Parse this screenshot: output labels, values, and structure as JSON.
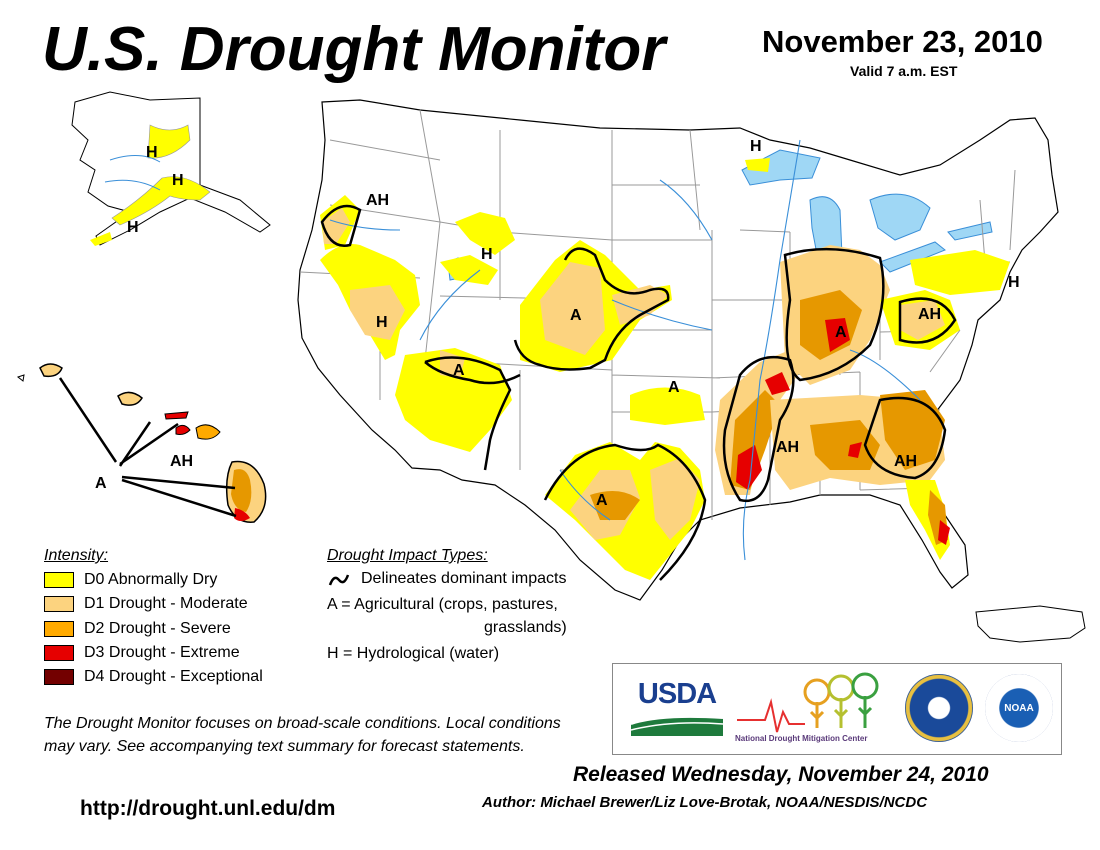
{
  "header": {
    "title": "U.S. Drought Monitor",
    "date": "November 23, 2010",
    "valid": "Valid 7 a.m. EST"
  },
  "colors": {
    "D0": "#ffff00",
    "D1": "#fcd37f",
    "D2": "#ffaa00",
    "D2_map": "#e69800",
    "D3": "#e60000",
    "D4": "#730000",
    "water": "#9fd7f5",
    "rivers": "#3a8fd8"
  },
  "legend": {
    "title": "Intensity:",
    "items": [
      {
        "code": "D0",
        "label": "D0 Abnormally Dry"
      },
      {
        "code": "D1",
        "label": "D1 Drought - Moderate"
      },
      {
        "code": "D2",
        "label": "D2 Drought - Severe"
      },
      {
        "code": "D3",
        "label": "D3 Drought - Extreme"
      },
      {
        "code": "D4",
        "label": "D4 Drought - Exceptional"
      }
    ]
  },
  "impacts": {
    "title": "Drought Impact Types:",
    "line": "Delineates dominant impacts",
    "agri_1": "A = Agricultural (crops, pastures,",
    "agri_2": "grasslands)",
    "hydro": "H = Hydrological (water)"
  },
  "map_labels": {
    "alaska_h1": "H",
    "alaska_h2": "H",
    "alaska_h3": "H",
    "oregon_ah": "AH",
    "nevada_h": "H",
    "idaho_h": "H",
    "minnesota_h": "H",
    "colorado_a": "A",
    "arizona_a": "A",
    "oklahoma_a": "A",
    "texas_a": "A",
    "indiana_a": "A",
    "ohio_ah": "AH",
    "mississippi_ah": "AH",
    "georgia_ah": "AH",
    "newengland_h": "H",
    "hawaii_ah": "AH",
    "hawaii_a": "A"
  },
  "note": "The Drought Monitor focuses on broad-scale conditions. Local conditions may vary. See accompanying text summary for forecast statements.",
  "url": "http://drought.unl.edu/dm",
  "released": "Released Wednesday, November 24, 2010",
  "author": "Author: Michael Brewer/Liz Love-Brotak, NOAA/NESDIS/NCDC",
  "logos": {
    "usda": "USDA",
    "ndmc": "National  Drought Mitigation Center",
    "noaa": "NOAA"
  }
}
